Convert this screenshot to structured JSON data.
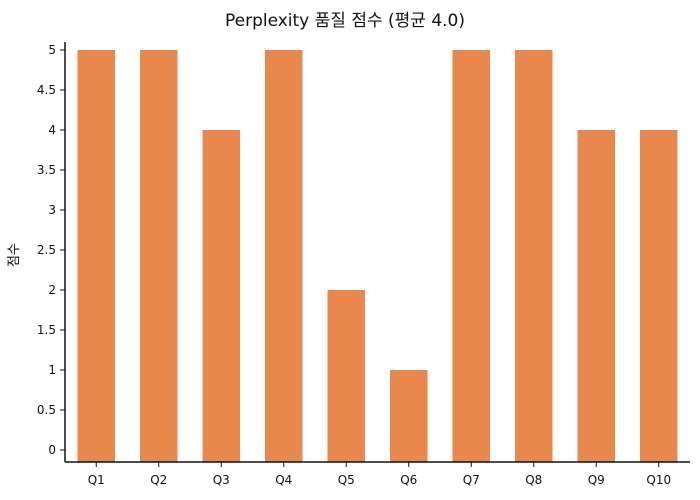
{
  "chart_data": {
    "type": "bar",
    "title": "Perplexity 품질 점수 (평균 4.0)",
    "xlabel": "",
    "ylabel": "점수",
    "categories": [
      "Q1",
      "Q2",
      "Q3",
      "Q4",
      "Q5",
      "Q6",
      "Q7",
      "Q8",
      "Q9",
      "Q10"
    ],
    "values": [
      5,
      5,
      4,
      5,
      2,
      1,
      5,
      5,
      4,
      4
    ],
    "ylim": [
      0,
      5
    ],
    "yticks": [
      0,
      0.5,
      1,
      1.5,
      2,
      2.5,
      3,
      3.5,
      4,
      4.5,
      5
    ],
    "bar_color": "#E8884D",
    "grid": false,
    "legend": "none"
  }
}
